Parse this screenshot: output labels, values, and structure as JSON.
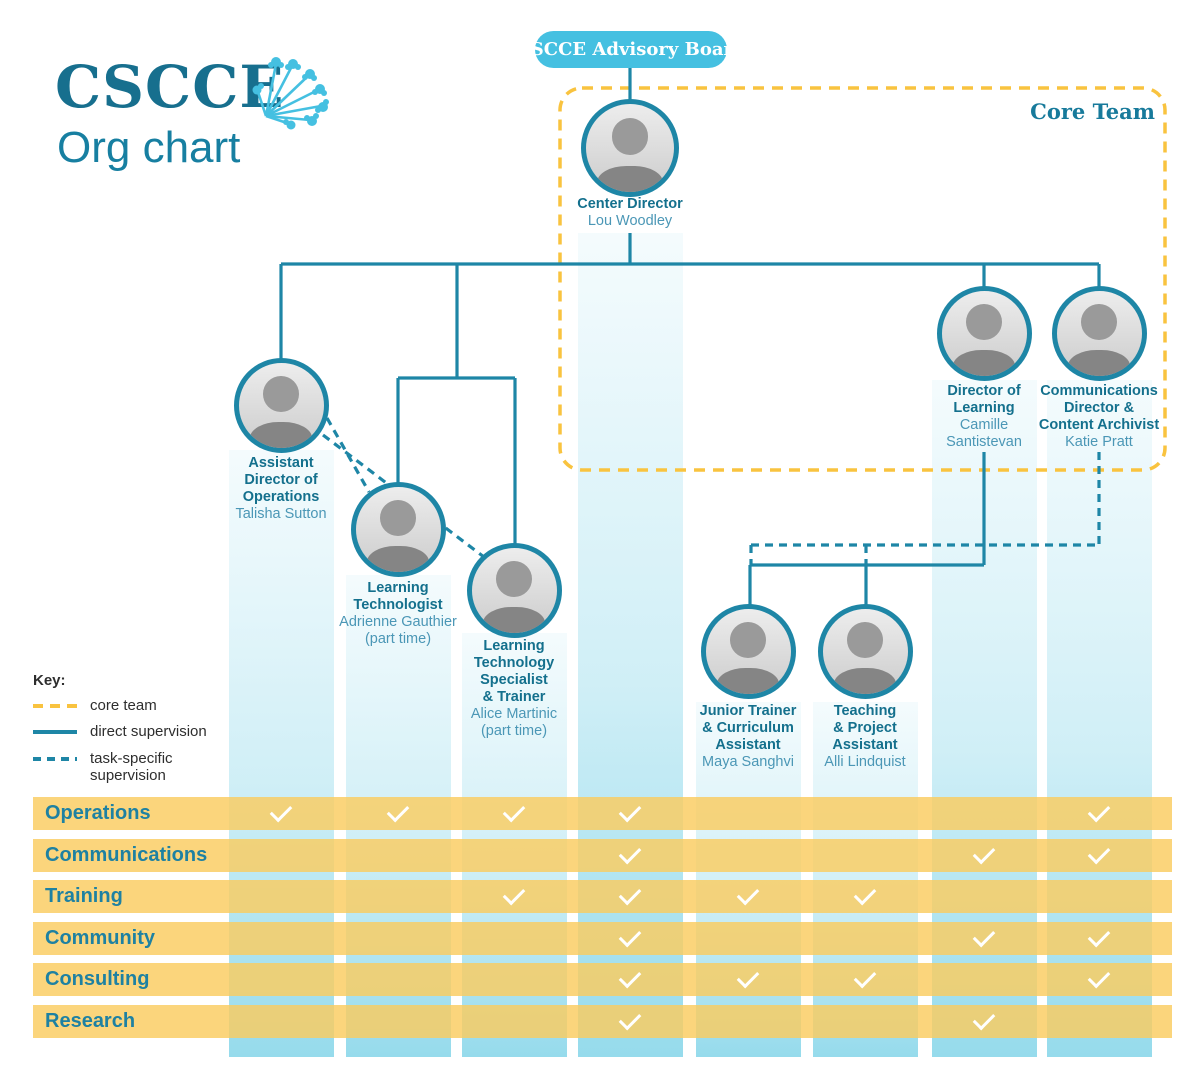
{
  "logo": {
    "brand": "CSCCE",
    "subtitle": "Org chart",
    "icon": "dandelion-burst-icon"
  },
  "advisory_board": {
    "label": "CSCCE Advisory Board"
  },
  "core_team_label": "Core Team",
  "key": {
    "title": "Key:",
    "items": [
      {
        "style": "yellow-dashed",
        "label": "core team"
      },
      {
        "style": "teal-solid",
        "label": "direct supervision"
      },
      {
        "style": "teal-dashed",
        "label": "task-specific supervision",
        "label_lines": [
          "task-specific",
          "supervision"
        ]
      }
    ]
  },
  "people": [
    {
      "id": "talisha",
      "title_lines": [
        "Assistant",
        "Director of",
        "Operations"
      ],
      "name_lines": [
        "Talisha Sutton"
      ],
      "core_team": false
    },
    {
      "id": "adrienne",
      "title_lines": [
        "Learning",
        "Technologist"
      ],
      "name_lines": [
        "Adrienne Gauthier",
        "(part time)"
      ],
      "core_team": false
    },
    {
      "id": "alice",
      "title_lines": [
        "Learning",
        "Technology",
        "Specialist",
        "& Trainer"
      ],
      "name_lines": [
        "Alice Martinic",
        "(part time)"
      ],
      "core_team": false
    },
    {
      "id": "lou",
      "title_lines": [
        "Center Director"
      ],
      "name_lines": [
        "Lou Woodley"
      ],
      "core_team": true
    },
    {
      "id": "maya",
      "title_lines": [
        "Junior Trainer",
        "& Curriculum",
        "Assistant"
      ],
      "name_lines": [
        "Maya Sanghvi"
      ],
      "core_team": false
    },
    {
      "id": "alli",
      "title_lines": [
        "Teaching",
        "& Project",
        "Assistant"
      ],
      "name_lines": [
        "Alli Lindquist"
      ],
      "core_team": false
    },
    {
      "id": "camille",
      "title_lines": [
        "Director of",
        "Learning"
      ],
      "name_lines": [
        "Camille",
        "Santistevan"
      ],
      "core_team": true
    },
    {
      "id": "katie",
      "title_lines": [
        "Communications",
        "Director &",
        "Content Archivist"
      ],
      "name_lines": [
        "Katie Pratt"
      ],
      "core_team": true
    }
  ],
  "relationships": {
    "advisory": [
      [
        "CSCCE Advisory Board",
        "Lou Woodley"
      ]
    ],
    "direct_supervision": [
      [
        "Lou Woodley",
        "Talisha Sutton"
      ],
      [
        "Lou Woodley",
        "Adrienne Gauthier"
      ],
      [
        "Lou Woodley",
        "Alice Martinic"
      ],
      [
        "Lou Woodley",
        "Camille Santistevan"
      ],
      [
        "Lou Woodley",
        "Katie Pratt"
      ],
      [
        "Camille Santistevan",
        "Maya Sanghvi"
      ],
      [
        "Camille Santistevan",
        "Alli Lindquist"
      ]
    ],
    "task_specific_supervision": [
      [
        "Talisha Sutton",
        "Adrienne Gauthier"
      ],
      [
        "Talisha Sutton",
        "Alice Martinic"
      ],
      [
        "Katie Pratt",
        "Maya Sanghvi"
      ],
      [
        "Katie Pratt",
        "Alli Lindquist"
      ]
    ]
  },
  "matrix": {
    "rows": [
      "Operations",
      "Communications",
      "Training",
      "Community",
      "Consulting",
      "Research"
    ],
    "columns": [
      "Talisha Sutton",
      "Adrienne Gauthier",
      "Alice Martinic",
      "Lou Woodley",
      "Maya Sanghvi",
      "Alli Lindquist",
      "Camille Santistevan",
      "Katie Pratt"
    ],
    "checks": [
      [
        1,
        1,
        1,
        1,
        0,
        0,
        0,
        1
      ],
      [
        0,
        0,
        0,
        1,
        0,
        0,
        1,
        1
      ],
      [
        0,
        0,
        1,
        1,
        1,
        1,
        0,
        0
      ],
      [
        0,
        0,
        0,
        1,
        0,
        0,
        1,
        1
      ],
      [
        0,
        0,
        0,
        1,
        1,
        1,
        0,
        1
      ],
      [
        0,
        0,
        0,
        1,
        0,
        0,
        1,
        0
      ]
    ]
  },
  "colors": {
    "teal_dark": "#14708d",
    "teal_name": "#4b97b6",
    "teal_line": "#1e86a6",
    "light_blue": "#45c0e1",
    "column_blue": "#96dbec",
    "yellow": "#f9c33f",
    "row_yellow": "#facc5f",
    "check_white": "#ffffff"
  }
}
